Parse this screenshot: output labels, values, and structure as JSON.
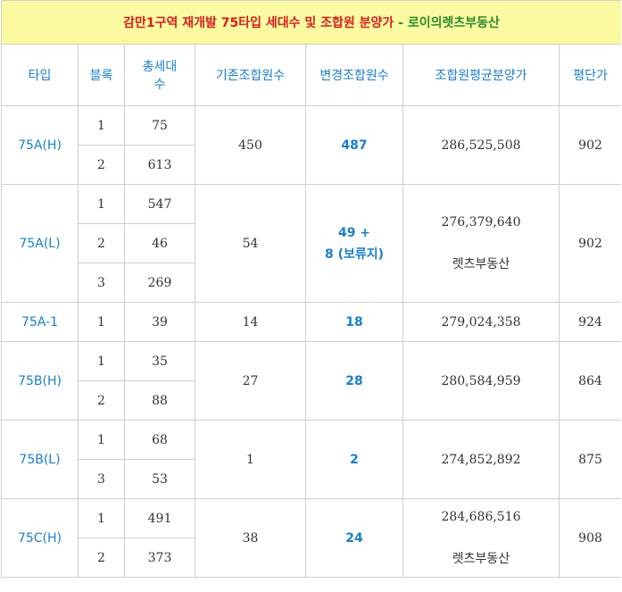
{
  "title": {
    "main": "감만1구역 재개발 75타입 세대수 및 조합원 분양가",
    "sep": " - ",
    "brand": "로이의렛츠부동산"
  },
  "headers": {
    "type": "타입",
    "block": "블록",
    "total_units_line1": "총세대",
    "total_units_line2": "수",
    "existing_members": "기존조합원수",
    "changed_members": "변경조합원수",
    "avg_price": "조합원평균분양가",
    "price_per_pyeong": "평단가"
  },
  "rows": {
    "r1": {
      "type": "75A(H)",
      "b1": "1",
      "u1": "75",
      "b2": "2",
      "u2": "613",
      "existing": "450",
      "changed": "487",
      "price": "286,525,508",
      "ppp": "902"
    },
    "r2": {
      "type": "75A(L)",
      "b1": "1",
      "u1": "547",
      "b2": "2",
      "u2": "46",
      "b3": "3",
      "u3": "269",
      "existing": "54",
      "changed_line1": "49 +",
      "changed_line2": "8 (보류지)",
      "price": "276,379,640",
      "watermark": "렛츠부동산",
      "ppp": "902"
    },
    "r3": {
      "type": "75A-1",
      "b1": "1",
      "u1": "39",
      "existing": "14",
      "changed": "18",
      "price": "279,024,358",
      "ppp": "924"
    },
    "r4": {
      "type": "75B(H)",
      "b1": "1",
      "u1": "35",
      "b2": "2",
      "u2": "88",
      "existing": "27",
      "changed": "28",
      "price": "280,584,959",
      "ppp": "864"
    },
    "r5": {
      "type": "75B(L)",
      "b1": "1",
      "u1": "68",
      "b2": "3",
      "u2": "53",
      "existing": "1",
      "changed": "2",
      "price": "274,852,892",
      "ppp": "875"
    },
    "r6": {
      "type": "75C(H)",
      "b1": "1",
      "u1": "491",
      "b2": "2",
      "u2": "373",
      "existing": "38",
      "changed": "24",
      "price": "284,686,516",
      "watermark": "렛츠부동산",
      "ppp": "908"
    }
  },
  "colors": {
    "title_bg": "#fbfaa0",
    "title_red": "#d62020",
    "title_green": "#2e8b2e",
    "accent_blue": "#1a7fc9"
  }
}
